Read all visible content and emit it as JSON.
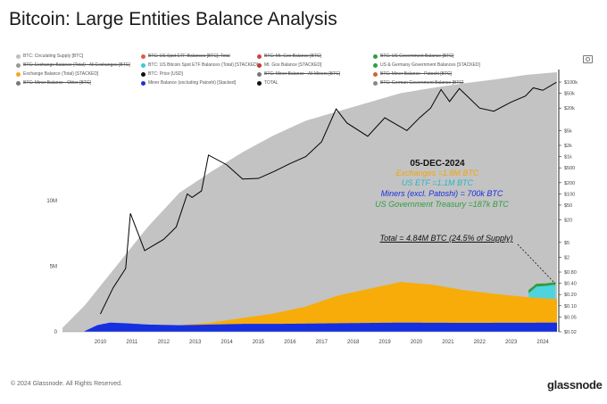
{
  "title": "Bitcoin: Large Entities Balance Analysis",
  "legend": [
    {
      "label": "BTC: Circulating Supply [BTC]",
      "color": "#bfbfbf",
      "strike": false
    },
    {
      "label": "BTC: US Spot ETF Balances [BTC]: Total",
      "color": "#e05a4a",
      "strike": true
    },
    {
      "label": "BTC: Mt. Gox Balance [BTC]",
      "color": "#cc4444",
      "strike": true
    },
    {
      "label": "BTC: US Government Balance [BTC]",
      "color": "#2e9e44",
      "strike": true
    },
    {
      "label": "BTC: Exchange Balance (Total) - All Exchanges [BTC]",
      "color": "#999999",
      "strike": true
    },
    {
      "label": "BTC: US Bitcoin Spot ETF Balances (Total) [STACKED]",
      "color": "#3fc7d4",
      "strike": false
    },
    {
      "label": "Mt. Gox Balance [STACKED]",
      "color": "#c0392b",
      "strike": false
    },
    {
      "label": "US & Germany Government Balances [STACKED]",
      "color": "#2e9e44",
      "strike": false
    },
    {
      "label": "Exchange Balance (Total) [STACKED]",
      "color": "#f5a623",
      "strike": false
    },
    {
      "label": "BTC: Price [USD]",
      "color": "#111111",
      "strike": false
    },
    {
      "label": "BTC: Miner Balance - All Miners [BTC]",
      "color": "#777777",
      "strike": true
    },
    {
      "label": "BTC: Miner Balance - Patoshi [BTC]",
      "color": "#cc6633",
      "strike": true
    },
    {
      "label": "BTC: Miner Balance - Other [BTC]",
      "color": "#777777",
      "strike": true
    },
    {
      "label": "Miner Balance (excluding Patoshi) [Stacked]",
      "color": "#1f2fd6",
      "strike": false
    },
    {
      "label": "TOTAL",
      "color": "#111111",
      "strike": false
    },
    {
      "label": "BTC: German Government Balance [BTC]",
      "color": "#888888",
      "strike": true
    }
  ],
  "annotation": {
    "date": "05-DEC-2024",
    "exchanges": "Exchanges =1.8M BTC",
    "etf": "US ETF =1.1M BTC",
    "miners": "Miners (excl. Patoshi) = 700k BTC",
    "gov": "US Government Treasury =187k BTC",
    "total": "Total =  4.84M BTC (24.5% of Supply)"
  },
  "colors": {
    "supply": "#c3c3c3",
    "exchange": "#f7ac0a",
    "miners": "#1530e0",
    "etf": "#4fd3dd",
    "gov": "#2e9e44",
    "price": "#000000"
  },
  "footer": "© 2024 Glassnode. All Rights Reserved.",
  "brand": "glassnode",
  "chart_data": {
    "type": "area",
    "x_ticks": [
      "2010",
      "2011",
      "2012",
      "2013",
      "2014",
      "2015",
      "2016",
      "2017",
      "2018",
      "2019",
      "2020",
      "2021",
      "2022",
      "2023",
      "2024"
    ],
    "left_axis": {
      "ticks": [
        "0",
        "5M",
        "10M"
      ],
      "range": [
        0,
        20000000
      ]
    },
    "right_axis": {
      "scale": "log",
      "ticks": [
        "$100k",
        "$50k",
        "$20k",
        "$5k",
        "$2k",
        "$1k",
        "$500",
        "$200",
        "$100",
        "$50",
        "$20",
        "$5",
        "$2",
        "$0.80",
        "$0.40",
        "$0.20",
        "$0.10",
        "$0.05",
        "$0.02"
      ]
    },
    "series": [
      {
        "name": "BTC: Circulating Supply [BTC]",
        "x": [
          2009.3,
          2010,
          2011,
          2012,
          2013,
          2014,
          2015,
          2016,
          2017,
          2018,
          2019,
          2020,
          2021,
          2022,
          2023,
          2024,
          2024.9
        ],
        "values": [
          300000,
          2000000,
          5000000,
          8000000,
          10600000,
          12200000,
          13700000,
          15000000,
          16100000,
          16800000,
          17500000,
          18200000,
          18600000,
          18950000,
          19250000,
          19600000,
          19790000
        ]
      },
      {
        "name": "Miner Balance (excluding Patoshi) [Stacked]",
        "x": [
          2010,
          2010.4,
          2010.8,
          2011.3,
          2012,
          2013,
          2014,
          2015,
          2016,
          2018,
          2020,
          2022,
          2024,
          2024.9
        ],
        "values": [
          50000,
          500000,
          700000,
          650000,
          550000,
          500000,
          550000,
          600000,
          600000,
          650000,
          700000,
          680000,
          690000,
          700000
        ]
      },
      {
        "name": "Exchange Balance (Total) [STACKED]",
        "x": [
          2013,
          2014,
          2015,
          2016,
          2017,
          2018,
          2019,
          2020,
          2021,
          2022,
          2023,
          2024,
          2024.9
        ],
        "values": [
          0,
          150000,
          450000,
          800000,
          1300000,
          2100000,
          2600000,
          3100000,
          2900000,
          2500000,
          2200000,
          1950000,
          1800000
        ]
      },
      {
        "name": "BTC: US Bitcoin Spot ETF Balances (Total) [STACKED]",
        "x": [
          2024.05,
          2024.3,
          2024.6,
          2024.92
        ],
        "values": [
          300000,
          850000,
          950000,
          1100000
        ]
      },
      {
        "name": "US & Germany Government Balances [STACKED]",
        "x": [
          2024.05,
          2024.5,
          2024.92
        ],
        "values": [
          250000,
          200000,
          187000
        ]
      },
      {
        "name": "BTC: Price [USD]",
        "x": [
          2010.5,
          2010.9,
          2011.3,
          2011.45,
          2011.9,
          2012.5,
          2012.9,
          2013.25,
          2013.4,
          2013.7,
          2013.92,
          2014.5,
          2015.0,
          2015.5,
          2016.0,
          2016.5,
          2017.0,
          2017.5,
          2017.96,
          2018.3,
          2018.96,
          2019.5,
          2019.9,
          2020.2,
          2020.6,
          2020.95,
          2021.28,
          2021.55,
          2021.86,
          2022.5,
          2022.95,
          2023.5,
          2023.95,
          2024.2,
          2024.5,
          2024.93
        ],
        "values": [
          0.06,
          0.3,
          1,
          30,
          3,
          6,
          13,
          100,
          80,
          120,
          1100,
          600,
          250,
          260,
          400,
          650,
          1000,
          2500,
          19000,
          8000,
          3500,
          11000,
          7000,
          5000,
          11000,
          20000,
          63000,
          30000,
          67000,
          20000,
          16500,
          29000,
          42000,
          70000,
          60000,
          98000
        ]
      }
    ]
  }
}
